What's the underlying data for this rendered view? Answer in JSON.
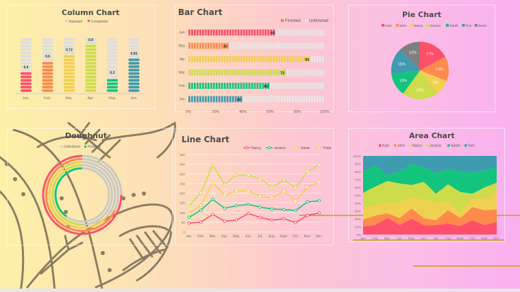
{
  "colors": {
    "kate": "#fe4f6b",
    "john": "#fe8a4b",
    "nancy": "#f0d050",
    "jessica": "#cddc4b",
    "sarah": "#12c47e",
    "tom": "#3f9bb0",
    "david": "#808080",
    "gray": "#dcdcdc"
  },
  "chart_data": [
    {
      "id": "column",
      "type": "bar",
      "title": "Column Chart",
      "legend": [
        "Standard",
        "Completion"
      ],
      "categories": [
        "Jan.",
        "Feb.",
        "Mar.",
        "Apr.",
        "May.",
        "Jun."
      ],
      "series": [
        {
          "name": "Standard",
          "values": [
            1,
            1,
            1,
            1,
            1,
            1
          ]
        },
        {
          "name": "Completion",
          "values": [
            0.4,
            0.6,
            0.72,
            0.9,
            0.3,
            0.65
          ]
        }
      ],
      "labels": [
        "0.4",
        "0.6",
        "0.72",
        "0.9",
        "0.3",
        "0.65"
      ],
      "bar_colors": [
        "#fe4f6b",
        "#fe8a4b",
        "#f0d050",
        "#cddc4b",
        "#12c47e",
        "#3f9bb0"
      ],
      "ylim": [
        0,
        1
      ]
    },
    {
      "id": "bar",
      "type": "bar",
      "orientation": "horizontal",
      "title": "Bar Chart",
      "legend": [
        "Finished",
        "Unfinished"
      ],
      "categories": [
        "Jun.",
        "May.",
        "Apr.",
        "Mar.",
        "Feb.",
        "Jan."
      ],
      "values": [
        65,
        30,
        90,
        72,
        60,
        40
      ],
      "bar_colors": [
        "#fe4f6b",
        "#fe8a4b",
        "#f0d050",
        "#cddc4b",
        "#12c47e",
        "#3f9bb0"
      ],
      "xticks": [
        "0%",
        "20%",
        "40%",
        "60%",
        "80%",
        "100%"
      ],
      "xlim": [
        0,
        100
      ]
    },
    {
      "id": "pie",
      "type": "pie",
      "title": "Pie Chart",
      "labels": [
        "Kate",
        "John",
        "Nancy",
        "Jessica",
        "Sarah",
        "Tom",
        "David"
      ],
      "values": [
        17,
        14,
        9,
        20,
        13,
        15,
        12
      ],
      "value_labels": [
        "17%",
        "14%",
        "9%",
        "20%",
        "13%",
        "15%",
        "12%"
      ],
      "slice_colors": [
        "#fe4f6b",
        "#fe8a4b",
        "#f0d050",
        "#cddc4b",
        "#12c47e",
        "#3f9bb0",
        "#808080"
      ]
    },
    {
      "id": "doughnut",
      "type": "pie",
      "subtype": "doughnut",
      "title": "Doughnut",
      "legend": [
        "Unfinished",
        "Finished"
      ],
      "rings": [
        {
          "color": "#fe4f6b",
          "value": 75
        },
        {
          "color": "#fe8a4b",
          "value": 68
        },
        {
          "color": "#f0d050",
          "value": 64
        },
        {
          "color": "#cddc4b",
          "value": 50
        },
        {
          "color": "#12c47e",
          "value": 40
        }
      ]
    },
    {
      "id": "line",
      "type": "line",
      "title": "Line Chart",
      "categories": [
        "Jan.",
        "Feb.",
        "Mar.",
        "Apr.",
        "May.",
        "Jun.",
        "Jul.",
        "Aug.",
        "Sept.",
        "Oct.",
        "Nov.",
        "Dec."
      ],
      "yticks": [
        "0",
        "50",
        "100",
        "150",
        "200",
        "250",
        "300",
        "350",
        "400"
      ],
      "ylim": [
        0,
        400
      ],
      "series": [
        {
          "name": "Nancy",
          "color": "#fe4f6b",
          "values": [
            45,
            50,
            90,
            55,
            60,
            95,
            75,
            60,
            68,
            48,
            85,
            98
          ]
        },
        {
          "name": "Jessica",
          "color": "#12c47e",
          "values": [
            75,
            112,
            168,
            122,
            135,
            142,
            128,
            118,
            115,
            110,
            155,
            160
          ]
        },
        {
          "name": "Sarah",
          "color": "#f0d050",
          "values": [
            95,
            138,
            255,
            190,
            212,
            212,
            185,
            175,
            210,
            160,
            232,
            258
          ]
        },
        {
          "name": "Peter",
          "color": "#cddc4b",
          "values": [
            135,
            202,
            345,
            245,
            295,
            292,
            275,
            230,
            268,
            228,
            312,
            348
          ]
        }
      ]
    },
    {
      "id": "area",
      "type": "area",
      "stacked": "percent",
      "title": "Area Chart",
      "categories": [
        "Jan.",
        "Feb.",
        "Mar.",
        "Apr.",
        "May.",
        "Jun.",
        "Jul.",
        "Aug.",
        "Sept.",
        "Oct.",
        "Nov.",
        "Dec."
      ],
      "yticks": [
        "0%",
        "10%",
        "20%",
        "30%",
        "40%",
        "50%",
        "60%",
        "70%",
        "80%",
        "90%",
        "100%"
      ],
      "ylim": [
        0,
        100
      ],
      "series": [
        {
          "name": "Kate",
          "color": "#fe4f6b",
          "values": [
            10,
            12,
            21,
            12,
            20,
            12,
            12,
            14,
            11,
            18,
            12,
            16
          ]
        },
        {
          "name": "John",
          "color": "#fe8a4b",
          "values": [
            9,
            12,
            6,
            9,
            13,
            9,
            6,
            17,
            10,
            17,
            19,
            16
          ]
        },
        {
          "name": "Nancy",
          "color": "#f0d050",
          "values": [
            16,
            13,
            14,
            19,
            15,
            23,
            22,
            11,
            8,
            11,
            15,
            22
          ]
        },
        {
          "name": "Jessica",
          "color": "#cddc4b",
          "values": [
            18,
            24,
            27,
            25,
            15,
            23,
            12,
            22,
            25,
            6,
            14,
            12
          ]
        },
        {
          "name": "Sarah",
          "color": "#12c47e",
          "values": [
            27,
            27,
            8,
            15,
            27,
            19,
            26,
            20,
            26,
            27,
            22,
            20
          ]
        },
        {
          "name": "Tom",
          "color": "#3f9bb0",
          "values": [
            20,
            12,
            24,
            20,
            10,
            14,
            22,
            16,
            20,
            21,
            18,
            14
          ]
        }
      ]
    }
  ]
}
